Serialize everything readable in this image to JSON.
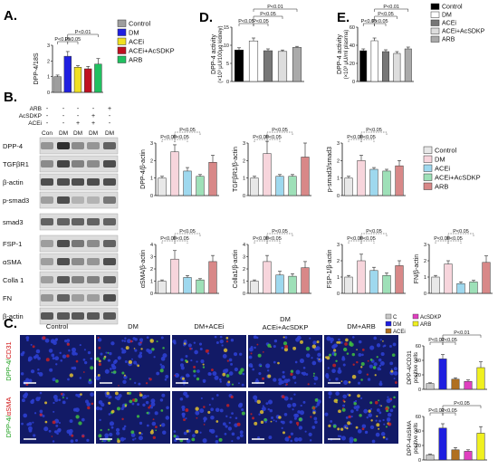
{
  "panels": {
    "A": "A.",
    "B": "B.",
    "C": "C.",
    "D": "D.",
    "E": "E."
  },
  "sig": {
    "p05": "P<0.05",
    "p01": "P<0.01"
  },
  "colors": {
    "control": "#9e9e9e",
    "dm": "#1f1fe0",
    "acei": "#f0e020",
    "acei_acsdkp": "#c01020",
    "arb": "#20c060",
    "b_control": "#e8e8e8",
    "b_dm": "#f7d5dc",
    "b_acei": "#9ed8ee",
    "b_acei_acsdkp": "#9ee0b8",
    "b_arb": "#d88888",
    "c_c": "#c8c8c8",
    "c_dm": "#1f1fe0",
    "c_acei": "#b07020",
    "c_acsdkp": "#e040c0",
    "c_arb": "#f0f020",
    "micro_bg": "#121a66"
  },
  "legend_A": [
    "Control",
    "DM",
    "ACEi",
    "ACEi+AcSDKP",
    "ARB"
  ],
  "legend_B": [
    "Control",
    "DM",
    "ACEi",
    "ACEi+AcSDKP",
    "ARB"
  ],
  "legend_E": [
    "Control",
    "DM",
    "ACEi",
    "ACEi+AcSDKP",
    "ARB"
  ],
  "legend_C": [
    "C",
    "DM",
    "ACEi",
    "AcSDKP",
    "ARB"
  ],
  "western": {
    "treat_rows": [
      "ARB",
      "AcSDKP",
      "ACEi"
    ],
    "signs": [
      [
        "-",
        "-",
        "-",
        "-",
        "+"
      ],
      [
        "-",
        "-",
        "-",
        "+",
        "-"
      ],
      [
        "-",
        "-",
        "+",
        "+",
        "-"
      ]
    ],
    "lanes": [
      "Con",
      "DM",
      "DM",
      "DM",
      "DM"
    ],
    "blots1": [
      "DPP-4",
      "TGFβR1",
      "β-actin",
      "p-smad3",
      "smad3"
    ],
    "blots2": [
      "FSP-1",
      "αSMA",
      "Colla 1",
      "FN",
      "β-actin"
    ]
  },
  "micro": {
    "cols": [
      "Control",
      "DM",
      "DM+ACEi",
      "DM",
      "DM+ARB"
    ],
    "col4_line2": "ACEi+AcSDKP",
    "row1_green": "DPP-4/",
    "row1_red": "CD31",
    "row2_green": "DPP-4/",
    "row2_red": "αSMA"
  },
  "chart_data": [
    {
      "type": "bar",
      "panel": "A",
      "ylabel": "DPP-4/18S",
      "ylim": [
        0,
        3
      ],
      "yticks": [
        0,
        1,
        2,
        3
      ],
      "categories": [
        "Control",
        "DM",
        "ACEi",
        "ACEi+AcSDKP",
        "ARB"
      ],
      "values": [
        1.0,
        2.3,
        1.6,
        1.5,
        1.8
      ],
      "errors": [
        0.1,
        0.3,
        0.1,
        0.15,
        0.35
      ]
    },
    {
      "type": "bar",
      "panel": "D",
      "ylabel": "DPP-4 activity",
      "ylabel2": "(×10³ μU/100μg kidney)",
      "ylim": [
        0,
        15
      ],
      "yticks": [
        0,
        5,
        10,
        15
      ],
      "categories": [
        "Control",
        "DM",
        "ACEi",
        "ACEi+AcSDKP",
        "ARB"
      ],
      "values": [
        8.7,
        11.2,
        8.5,
        8.3,
        9.4
      ],
      "errors": [
        0.6,
        0.8,
        0.5,
        0.4,
        0.3
      ]
    },
    {
      "type": "bar",
      "panel": "E",
      "ylabel": "DPP-4 activity",
      "ylabel2": "(×10³ μU/ml plasma)",
      "ylim": [
        0,
        60
      ],
      "yticks": [
        0,
        20,
        40,
        60
      ],
      "categories": [
        "Control",
        "DM",
        "ACEi",
        "ACEi+AcSDKP",
        "ARB"
      ],
      "values": [
        34,
        45,
        33,
        31,
        36
      ],
      "errors": [
        2,
        3,
        2,
        2,
        2
      ]
    },
    {
      "type": "bar",
      "panel": "B1",
      "ylabel": "DPP-4/β-actin",
      "ylim": [
        0,
        3
      ],
      "yticks": [
        0,
        1,
        2,
        3
      ],
      "categories": [
        "Control",
        "DM",
        "ACEi",
        "ACEi+AcSDKP",
        "ARB"
      ],
      "values": [
        1.0,
        2.5,
        1.4,
        1.1,
        1.9
      ],
      "errors": [
        0.1,
        0.4,
        0.2,
        0.1,
        0.4
      ]
    },
    {
      "type": "bar",
      "panel": "B2",
      "ylabel": "TGFβR1/β-actin",
      "ylim": [
        0,
        3
      ],
      "yticks": [
        0,
        1,
        2,
        3
      ],
      "categories": [
        "Control",
        "DM",
        "ACEi",
        "ACEi+AcSDKP",
        "ARB"
      ],
      "values": [
        1.0,
        2.4,
        1.1,
        1.1,
        2.2
      ],
      "errors": [
        0.1,
        0.7,
        0.1,
        0.1,
        0.8
      ]
    },
    {
      "type": "bar",
      "panel": "B3",
      "ylabel": "p-smad3/smad3",
      "ylim": [
        0,
        3
      ],
      "yticks": [
        0,
        1,
        2,
        3
      ],
      "categories": [
        "Control",
        "DM",
        "ACEi",
        "ACEi+AcSDKP",
        "ARB"
      ],
      "values": [
        1.0,
        2.0,
        1.5,
        1.4,
        1.7
      ],
      "errors": [
        0.1,
        0.3,
        0.1,
        0.1,
        0.3
      ]
    },
    {
      "type": "bar",
      "panel": "B4",
      "ylabel": "αSMA/β-actin",
      "ylim": [
        0,
        4
      ],
      "yticks": [
        0,
        1,
        2,
        3,
        4
      ],
      "categories": [
        "Control",
        "DM",
        "ACEi",
        "ACEi+AcSDKP",
        "ARB"
      ],
      "values": [
        1.0,
        2.8,
        1.3,
        1.1,
        2.6
      ],
      "errors": [
        0.1,
        0.7,
        0.15,
        0.1,
        0.5
      ]
    },
    {
      "type": "bar",
      "panel": "B5",
      "ylabel": "Colla1/β-actin",
      "ylim": [
        0,
        4
      ],
      "yticks": [
        0,
        1,
        2,
        3,
        4
      ],
      "categories": [
        "Control",
        "DM",
        "ACEi",
        "ACEi+AcSDKP",
        "ARB"
      ],
      "values": [
        1.0,
        2.6,
        1.5,
        1.4,
        2.1
      ],
      "errors": [
        0.1,
        0.5,
        0.3,
        0.2,
        0.5
      ]
    },
    {
      "type": "bar",
      "panel": "B6",
      "ylabel": "FSP-1/β-actin",
      "ylim": [
        0,
        3
      ],
      "yticks": [
        0,
        1,
        2,
        3
      ],
      "categories": [
        "Control",
        "DM",
        "ACEi",
        "ACEi+AcSDKP",
        "ARB"
      ],
      "values": [
        1.0,
        2.0,
        1.4,
        1.1,
        1.7
      ],
      "errors": [
        0.1,
        0.4,
        0.2,
        0.15,
        0.3
      ]
    },
    {
      "type": "bar",
      "panel": "B7",
      "ylabel": "FN/β-actin",
      "ylim": [
        0,
        3
      ],
      "yticks": [
        0,
        1,
        2,
        3
      ],
      "categories": [
        "Control",
        "DM",
        "ACEi",
        "ACEi+AcSDKP",
        "ARB"
      ],
      "values": [
        1.0,
        1.8,
        0.6,
        0.7,
        1.9
      ],
      "errors": [
        0.1,
        0.2,
        0.1,
        0.1,
        0.4
      ]
    },
    {
      "type": "bar",
      "panel": "C1",
      "ylabel": "DPP-4/CD31",
      "ylabel2": "positive cells",
      "ylim": [
        0,
        60
      ],
      "yticks": [
        0,
        20,
        40,
        60
      ],
      "categories": [
        "C",
        "DM",
        "ACEi",
        "AcSDKP",
        "ARB"
      ],
      "values": [
        8,
        42,
        14,
        11,
        30
      ],
      "errors": [
        1,
        6,
        2,
        2,
        8
      ]
    },
    {
      "type": "bar",
      "panel": "C2",
      "ylabel": "DPP-4/αSMA",
      "ylabel2": "positive cells",
      "ylim": [
        0,
        60
      ],
      "yticks": [
        0,
        20,
        40,
        60
      ],
      "categories": [
        "C",
        "DM",
        "ACEi",
        "AcSDKP",
        "ARB"
      ],
      "values": [
        7,
        44,
        14,
        12,
        37
      ],
      "errors": [
        1,
        6,
        3,
        2,
        9
      ]
    }
  ]
}
